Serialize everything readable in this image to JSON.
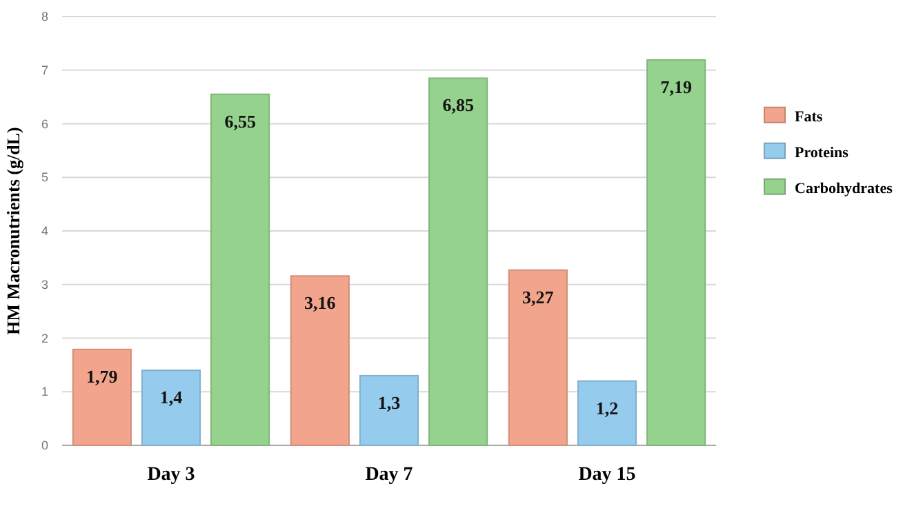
{
  "chart_data": {
    "type": "bar",
    "ylabel": "HM Macronutrients (g/dL)",
    "categories": [
      "Day 3",
      "Day 7",
      "Day 15"
    ],
    "series": [
      {
        "name": "Fats",
        "color": "#f2a58c",
        "values": [
          1.79,
          3.16,
          3.27
        ],
        "value_labels": [
          "1,79",
          "3,16",
          "3,27"
        ]
      },
      {
        "name": "Proteins",
        "color": "#95cbec",
        "values": [
          1.4,
          1.3,
          1.2
        ],
        "value_labels": [
          "1,4",
          "1,3",
          "1,2"
        ]
      },
      {
        "name": "Carbohydrates",
        "color": "#94d28d",
        "values": [
          6.55,
          6.85,
          7.19
        ],
        "value_labels": [
          "6,55",
          "6,85",
          "7,19"
        ]
      }
    ],
    "ylim": [
      0,
      8
    ],
    "yticks": [
      0,
      1,
      2,
      3,
      4,
      5,
      6,
      7,
      8
    ],
    "grid": "y",
    "legend": "right"
  }
}
